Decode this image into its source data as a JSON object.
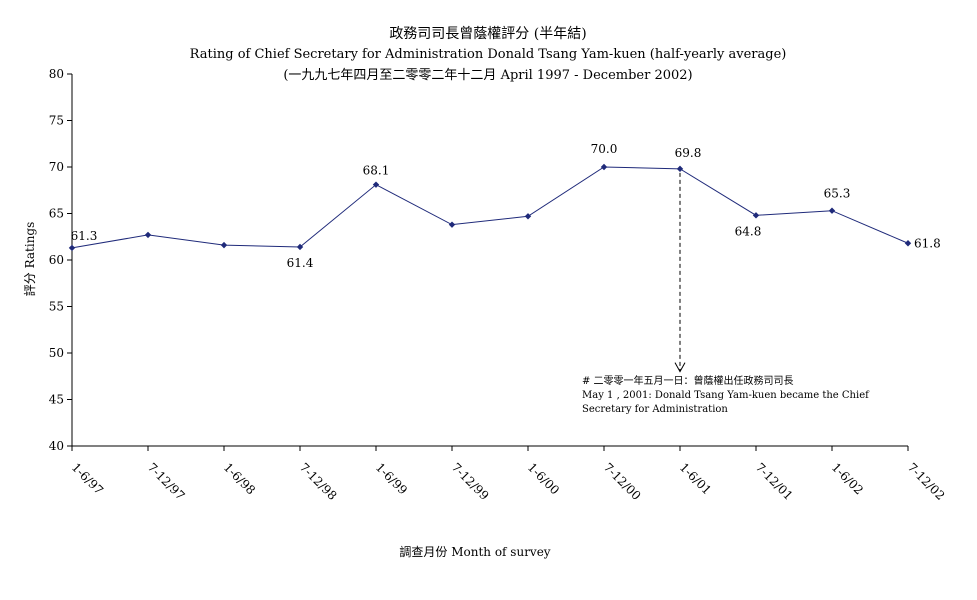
{
  "chart_data": {
    "type": "line",
    "title": "政務司司長曾蔭權評分 (半年結)",
    "subtitle": "Rating of Chief Secretary for Administration Donald Tsang Yam-kuen  (half-yearly average)",
    "subtitle2": "(一九九七年四月至二零零二年十二月 April 1997 - December 2002)",
    "xlabel": "調查月份 Month of survey",
    "ylabel": "評分 Ratings",
    "ylim": [
      40,
      80
    ],
    "yticks": [
      40,
      45,
      50,
      55,
      60,
      65,
      70,
      75,
      80
    ],
    "categories": [
      "1-6/97",
      "7-12/97",
      "1-6/98",
      "7-12/98",
      "1-6/99",
      "7-12/99",
      "1-6/00",
      "7-12/00",
      "1-6/01",
      "7-12/01",
      "1-6/02",
      "7-12/02"
    ],
    "values": [
      61.3,
      62.7,
      61.6,
      61.4,
      68.1,
      63.8,
      64.7,
      70.0,
      69.8,
      64.8,
      65.3,
      61.8
    ],
    "data_labels": [
      "61.3",
      null,
      null,
      "61.4",
      "68.1",
      null,
      null,
      "70.0",
      "69.8",
      "64.8",
      "65.3",
      "61.8"
    ],
    "grid": false,
    "line_color": "#1f2a7a",
    "annotation": {
      "category": "1-6/01",
      "arrow_to_value": 48,
      "line1": "# 二零零一年五月一日：曾蔭權出任政務司司長",
      "line2": "May 1 , 2001: Donald Tsang Yam-kuen became the Chief",
      "line3": "Secretary for Administration"
    }
  }
}
